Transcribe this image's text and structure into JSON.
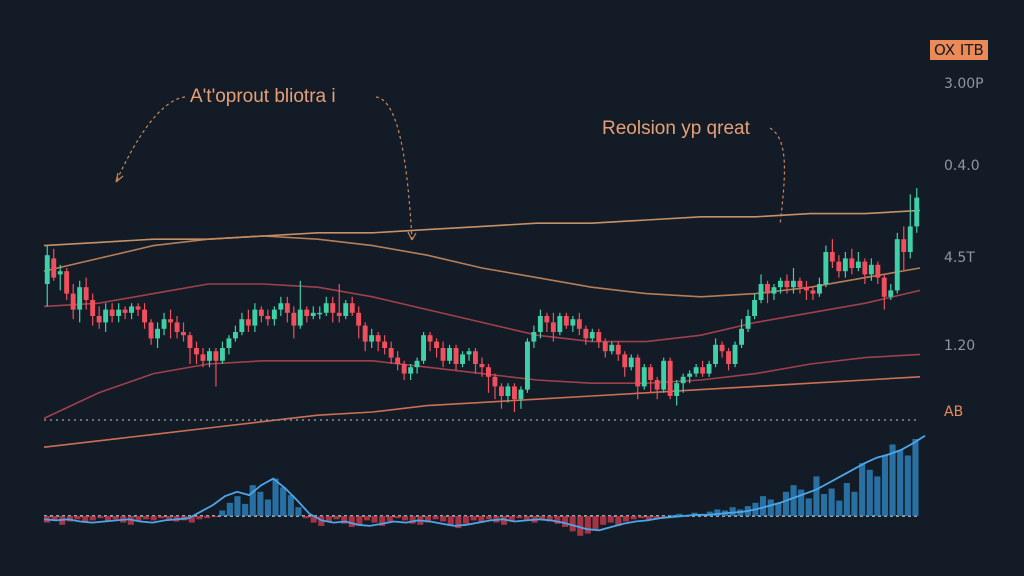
{
  "chart_data": {
    "type": "candlestick",
    "ticker_badge": "OX ITB",
    "y_tick_labels": [
      "3.00P",
      "0.4.0",
      "4.5T",
      "1.20"
    ],
    "indicator_label": "AB",
    "annotations": [
      "A't'oprout bliotra i",
      "Reolsion yp qreat"
    ],
    "x": [
      1,
      2,
      3,
      4,
      5,
      6,
      7,
      8,
      9,
      10,
      11,
      12,
      13,
      14,
      15,
      16,
      17,
      18,
      19,
      20,
      21,
      22,
      23,
      24,
      25,
      26,
      27,
      28,
      29,
      30,
      31,
      32,
      33,
      34,
      35,
      36,
      37,
      38,
      39,
      40,
      41,
      42,
      43,
      44,
      45,
      46,
      47,
      48,
      49,
      50,
      51,
      52,
      53,
      54,
      55,
      56,
      57,
      58,
      59,
      60,
      61,
      62,
      63,
      64,
      65,
      66,
      67,
      68,
      69,
      70,
      71,
      72,
      73,
      74,
      75,
      76,
      77,
      78,
      79,
      80,
      81,
      82,
      83,
      84,
      85,
      86,
      87,
      88,
      89,
      90,
      91,
      92,
      93,
      94,
      95,
      96,
      97,
      98,
      99,
      100,
      101,
      102,
      103,
      104,
      105,
      106,
      107,
      108,
      109,
      110,
      111,
      112,
      113,
      114,
      115,
      116,
      117,
      118,
      119,
      120,
      121,
      122,
      123,
      124,
      125,
      126,
      127,
      128,
      129,
      130,
      131,
      132,
      133,
      134,
      135
    ],
    "candles": [
      [
        0.3,
        0.39,
        0.23,
        0.42
      ],
      [
        0.38,
        0.32,
        0.31,
        0.41
      ],
      [
        0.33,
        0.34,
        0.28,
        0.36
      ],
      [
        0.34,
        0.27,
        0.25,
        0.35
      ],
      [
        0.27,
        0.22,
        0.19,
        0.3
      ],
      [
        0.22,
        0.29,
        0.18,
        0.31
      ],
      [
        0.29,
        0.25,
        0.22,
        0.32
      ],
      [
        0.25,
        0.2,
        0.17,
        0.27
      ],
      [
        0.2,
        0.18,
        0.16,
        0.23
      ],
      [
        0.18,
        0.22,
        0.15,
        0.24
      ],
      [
        0.22,
        0.2,
        0.18,
        0.24
      ],
      [
        0.2,
        0.22,
        0.18,
        0.24
      ],
      [
        0.22,
        0.21,
        0.19,
        0.23
      ],
      [
        0.21,
        0.23,
        0.19,
        0.24
      ],
      [
        0.23,
        0.22,
        0.2,
        0.24
      ],
      [
        0.22,
        0.18,
        0.16,
        0.24
      ],
      [
        0.18,
        0.13,
        0.11,
        0.19
      ],
      [
        0.13,
        0.16,
        0.1,
        0.18
      ],
      [
        0.16,
        0.19,
        0.14,
        0.21
      ],
      [
        0.19,
        0.18,
        0.13,
        0.22
      ],
      [
        0.18,
        0.15,
        0.13,
        0.2
      ],
      [
        0.15,
        0.14,
        0.12,
        0.18
      ],
      [
        0.14,
        0.1,
        0.05,
        0.15
      ],
      [
        0.1,
        0.08,
        0.05,
        0.12
      ],
      [
        0.08,
        0.06,
        0.04,
        0.1
      ],
      [
        0.06,
        0.09,
        0.04,
        0.1
      ],
      [
        0.09,
        0.06,
        -0.02,
        0.1
      ],
      [
        0.06,
        0.1,
        0.05,
        0.12
      ],
      [
        0.1,
        0.13,
        0.08,
        0.14
      ],
      [
        0.13,
        0.15,
        0.12,
        0.17
      ],
      [
        0.15,
        0.19,
        0.14,
        0.21
      ],
      [
        0.19,
        0.17,
        0.15,
        0.22
      ],
      [
        0.17,
        0.22,
        0.15,
        0.24
      ],
      [
        0.22,
        0.2,
        0.18,
        0.23
      ],
      [
        0.2,
        0.19,
        0.17,
        0.22
      ],
      [
        0.19,
        0.22,
        0.17,
        0.23
      ],
      [
        0.22,
        0.24,
        0.2,
        0.26
      ],
      [
        0.24,
        0.21,
        0.18,
        0.26
      ],
      [
        0.21,
        0.17,
        0.13,
        0.23
      ],
      [
        0.17,
        0.22,
        0.16,
        0.31
      ],
      [
        0.22,
        0.2,
        0.18,
        0.23
      ],
      [
        0.2,
        0.21,
        0.19,
        0.23
      ],
      [
        0.21,
        0.21,
        0.19,
        0.23
      ],
      [
        0.21,
        0.24,
        0.2,
        0.26
      ],
      [
        0.24,
        0.21,
        0.18,
        0.26
      ],
      [
        0.21,
        0.2,
        0.18,
        0.3
      ],
      [
        0.2,
        0.24,
        0.19,
        0.25
      ],
      [
        0.24,
        0.21,
        0.2,
        0.26
      ],
      [
        0.21,
        0.17,
        0.13,
        0.23
      ],
      [
        0.17,
        0.12,
        0.09,
        0.18
      ],
      [
        0.12,
        0.14,
        0.1,
        0.16
      ],
      [
        0.14,
        0.12,
        0.09,
        0.15
      ],
      [
        0.12,
        0.1,
        0.08,
        0.14
      ],
      [
        0.1,
        0.07,
        0.05,
        0.12
      ],
      [
        0.07,
        0.05,
        0.03,
        0.09
      ],
      [
        0.05,
        0.02,
        0.0,
        0.06
      ],
      [
        0.02,
        0.04,
        0.0,
        0.05
      ],
      [
        0.04,
        0.06,
        0.02,
        0.07
      ],
      [
        0.06,
        0.14,
        0.05,
        0.15
      ],
      [
        0.14,
        0.12,
        0.09,
        0.15
      ],
      [
        0.12,
        0.1,
        0.07,
        0.13
      ],
      [
        0.1,
        0.06,
        0.04,
        0.12
      ],
      [
        0.06,
        0.1,
        0.05,
        0.11
      ],
      [
        0.1,
        0.05,
        0.03,
        0.11
      ],
      [
        0.05,
        0.08,
        0.04,
        0.09
      ],
      [
        0.08,
        0.09,
        0.06,
        0.1
      ],
      [
        0.09,
        0.05,
        0.02,
        0.1
      ],
      [
        0.05,
        0.04,
        0.01,
        0.07
      ],
      [
        0.04,
        0.01,
        -0.04,
        0.05
      ],
      [
        0.01,
        -0.02,
        -0.06,
        0.02
      ],
      [
        -0.02,
        -0.05,
        -0.09,
        -0.01
      ],
      [
        -0.05,
        -0.02,
        -0.07,
        -0.01
      ],
      [
        -0.02,
        -0.06,
        -0.1,
        -0.01
      ],
      [
        -0.06,
        -0.03,
        -0.09,
        -0.02
      ],
      [
        -0.03,
        0.12,
        -0.04,
        0.13
      ],
      [
        0.12,
        0.15,
        0.1,
        0.17
      ],
      [
        0.15,
        0.2,
        0.13,
        0.22
      ],
      [
        0.2,
        0.18,
        0.15,
        0.21
      ],
      [
        0.18,
        0.15,
        0.12,
        0.21
      ],
      [
        0.15,
        0.2,
        0.14,
        0.21
      ],
      [
        0.2,
        0.17,
        0.16,
        0.21
      ],
      [
        0.17,
        0.19,
        0.15,
        0.2
      ],
      [
        0.19,
        0.16,
        0.14,
        0.21
      ],
      [
        0.16,
        0.13,
        0.11,
        0.17
      ],
      [
        0.13,
        0.15,
        0.12,
        0.16
      ],
      [
        0.15,
        0.12,
        0.1,
        0.16
      ],
      [
        0.12,
        0.09,
        0.07,
        0.13
      ],
      [
        0.09,
        0.11,
        0.08,
        0.12
      ],
      [
        0.11,
        0.08,
        0.06,
        0.12
      ],
      [
        0.08,
        0.04,
        0.01,
        0.09
      ],
      [
        0.04,
        0.07,
        0.03,
        0.08
      ],
      [
        0.07,
        -0.02,
        -0.06,
        0.08
      ],
      [
        -0.02,
        0.04,
        -0.03,
        0.05
      ],
      [
        0.04,
        0.0,
        -0.04,
        0.05
      ],
      [
        0.0,
        -0.03,
        -0.06,
        0.01
      ],
      [
        -0.03,
        0.06,
        -0.04,
        0.07
      ],
      [
        0.06,
        -0.05,
        -0.06,
        0.07
      ],
      [
        -0.05,
        -0.01,
        -0.08,
        0.0
      ],
      [
        -0.01,
        0.01,
        -0.04,
        0.02
      ],
      [
        0.01,
        0.02,
        -0.01,
        0.03
      ],
      [
        0.02,
        0.04,
        0.01,
        0.05
      ],
      [
        0.04,
        0.02,
        0.01,
        0.06
      ],
      [
        0.02,
        0.05,
        0.01,
        0.06
      ],
      [
        0.05,
        0.11,
        0.04,
        0.13
      ],
      [
        0.11,
        0.09,
        0.07,
        0.12
      ],
      [
        0.09,
        0.05,
        0.03,
        0.1
      ],
      [
        0.05,
        0.11,
        0.04,
        0.12
      ],
      [
        0.11,
        0.16,
        0.1,
        0.19
      ],
      [
        0.16,
        0.2,
        0.15,
        0.22
      ],
      [
        0.2,
        0.25,
        0.19,
        0.27
      ],
      [
        0.25,
        0.3,
        0.24,
        0.33
      ],
      [
        0.3,
        0.27,
        0.24,
        0.31
      ],
      [
        0.27,
        0.29,
        0.25,
        0.3
      ],
      [
        0.29,
        0.31,
        0.27,
        0.32
      ],
      [
        0.31,
        0.29,
        0.27,
        0.33
      ],
      [
        0.29,
        0.31,
        0.27,
        0.35
      ],
      [
        0.31,
        0.29,
        0.27,
        0.32
      ],
      [
        0.29,
        0.28,
        0.25,
        0.31
      ],
      [
        0.28,
        0.27,
        0.25,
        0.29
      ],
      [
        0.27,
        0.3,
        0.26,
        0.32
      ],
      [
        0.3,
        0.4,
        0.29,
        0.42
      ],
      [
        0.4,
        0.37,
        0.35,
        0.44
      ],
      [
        0.37,
        0.34,
        0.32,
        0.39
      ],
      [
        0.34,
        0.38,
        0.32,
        0.4
      ],
      [
        0.38,
        0.35,
        0.33,
        0.41
      ],
      [
        0.35,
        0.37,
        0.34,
        0.4
      ],
      [
        0.37,
        0.33,
        0.3,
        0.38
      ],
      [
        0.33,
        0.36,
        0.31,
        0.38
      ],
      [
        0.36,
        0.32,
        0.3,
        0.37
      ],
      [
        0.32,
        0.26,
        0.22,
        0.33
      ],
      [
        0.26,
        0.28,
        0.25,
        0.3
      ],
      [
        0.28,
        0.44,
        0.27,
        0.46
      ],
      [
        0.44,
        0.4,
        0.34,
        0.48
      ],
      [
        0.4,
        0.48,
        0.38,
        0.58
      ],
      [
        0.48,
        0.57,
        0.46,
        0.6
      ]
    ],
    "lines": [
      {
        "color": "#d9a06e",
        "values": [
          0.42,
          0.43,
          0.44,
          0.44,
          0.45,
          0.46,
          0.46,
          0.47,
          0.48,
          0.49,
          0.49,
          0.5,
          0.51,
          0.51,
          0.52,
          0.52,
          0.53
        ]
      },
      {
        "color": "#c98a5a",
        "values": [
          0.34,
          0.38,
          0.42,
          0.44,
          0.45,
          0.44,
          0.42,
          0.39,
          0.35,
          0.32,
          0.29,
          0.27,
          0.26,
          0.27,
          0.29,
          0.32,
          0.35
        ]
      },
      {
        "color": "#b0454f",
        "values": [
          0.23,
          0.24,
          0.27,
          0.3,
          0.3,
          0.29,
          0.26,
          0.22,
          0.18,
          0.14,
          0.12,
          0.12,
          0.14,
          0.18,
          0.21,
          0.24,
          0.28
        ]
      },
      {
        "color": "#b0454f",
        "values": [
          -0.12,
          -0.04,
          0.02,
          0.05,
          0.06,
          0.06,
          0.06,
          0.04,
          0.02,
          0.0,
          -0.01,
          -0.01,
          0.0,
          0.02,
          0.05,
          0.07,
          0.08
        ]
      },
      {
        "color": "#e0795b",
        "values": [
          -0.21,
          -0.19,
          -0.17,
          -0.15,
          -0.13,
          -0.11,
          -0.1,
          -0.08,
          -0.07,
          -0.06,
          -0.05,
          -0.04,
          -0.03,
          -0.02,
          -0.01,
          0.0,
          0.01
        ]
      }
    ],
    "indicator": {
      "histogram": [
        -0.6,
        -0.4,
        -0.8,
        -0.5,
        -0.3,
        -0.6,
        -0.4,
        -0.2,
        -0.5,
        -0.3,
        -0.6,
        -0.8,
        -0.5,
        -0.3,
        -0.4,
        -0.2,
        -0.3,
        -0.5,
        -0.4,
        -0.6,
        -0.3,
        -0.2,
        -0.1,
        0.5,
        1.2,
        1.8,
        1.1,
        2.8,
        2.2,
        1.5,
        3.4,
        2.6,
        1.9,
        0.8,
        -0.2,
        -0.6,
        -0.9,
        -0.5,
        -0.3,
        -0.7,
        -1.0,
        -0.8,
        -0.4,
        -0.6,
        -0.9,
        -0.5,
        -0.2,
        -0.4,
        -0.7,
        -0.8,
        -0.6,
        -0.3,
        -0.5,
        -0.9,
        -1.1,
        -0.7,
        -0.4,
        -0.5,
        -0.3,
        -0.6,
        -0.8,
        -0.5,
        -0.2,
        -0.4,
        -0.6,
        -0.3,
        -0.5,
        -0.7,
        -1.0,
        -1.4,
        -1.8,
        -1.6,
        -1.2,
        -0.8,
        -0.6,
        -0.9,
        -0.5,
        -0.3,
        -0.2,
        -0.4,
        -0.3,
        -0.1,
        0.1,
        0.2,
        0.1,
        0.3,
        0.2,
        0.4,
        0.6,
        0.5,
        0.8,
        0.6,
        0.9,
        1.2,
        1.8,
        1.5,
        1.2,
        2.2,
        2.8,
        2.4,
        1.6,
        3.6,
        2.0,
        2.5,
        1.4,
        3.0,
        2.2,
        4.8,
        4.2,
        3.6,
        5.5,
        6.5,
        6.0,
        5.5,
        7.0
      ],
      "line": [
        -0.3,
        -0.4,
        -0.3,
        -0.5,
        -0.6,
        -0.5,
        -0.4,
        -0.3,
        -0.5,
        -0.6,
        -0.4,
        -0.3,
        -0.2,
        0.4,
        1.0,
        1.8,
        2.2,
        1.9,
        2.8,
        3.4,
        2.5,
        1.4,
        0.2,
        -0.4,
        -0.6,
        -0.5,
        -0.8,
        -0.9,
        -0.7,
        -0.5,
        -0.6,
        -0.4,
        -0.5,
        -0.7,
        -0.9,
        -0.8,
        -0.6,
        -0.4,
        -0.3,
        -0.5,
        -0.4,
        -0.3,
        -0.4,
        -0.6,
        -0.9,
        -1.2,
        -1.3,
        -1.0,
        -0.7,
        -0.5,
        -0.4,
        -0.2,
        -0.1,
        0.0,
        0.1,
        0.1,
        0.2,
        0.3,
        0.4,
        0.6,
        0.9,
        1.2,
        1.6,
        2.0,
        2.4,
        3.0,
        3.6,
        4.2,
        4.8,
        5.3,
        5.6,
        6.0,
        6.6,
        7.3
      ]
    }
  }
}
